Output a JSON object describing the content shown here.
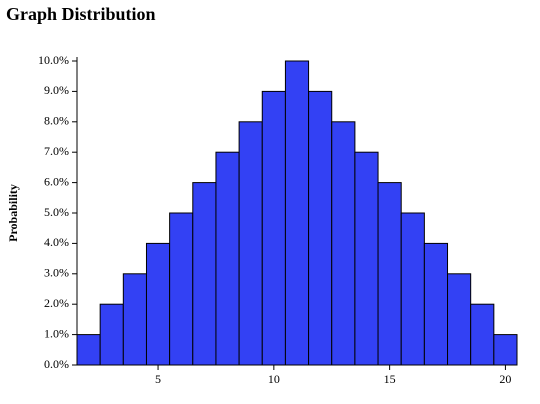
{
  "chart_data": {
    "type": "histogram",
    "title": "Graph Distribution",
    "y_label": "Probability",
    "bins": [
      1.5,
      2.5,
      3.5,
      4.5,
      5.5,
      6.5,
      7.5,
      8.5,
      9.5,
      10.5,
      11.5,
      12.5,
      13.5,
      14.5,
      15.5,
      16.5,
      17.5,
      18.5,
      19.5,
      20.5
    ],
    "counts": [
      1,
      2,
      3,
      4,
      5,
      6,
      7,
      8,
      9,
      10,
      9,
      8,
      7,
      6,
      5,
      4,
      3,
      2,
      1
    ],
    "color": "#3341f4",
    "xlim": [
      1.5,
      20.5
    ],
    "xticks": [
      5,
      10,
      15,
      20
    ],
    "ylim": [
      0,
      10
    ],
    "yticks": [
      {
        "value": 0,
        "label": "0.0%"
      },
      {
        "value": 1,
        "label": "1.0%"
      },
      {
        "value": 2,
        "label": "2.0%"
      },
      {
        "value": 3,
        "label": "3.0%"
      },
      {
        "value": 4,
        "label": "4.0%"
      },
      {
        "value": 5,
        "label": "5.0%"
      },
      {
        "value": 6,
        "label": "6.0%"
      },
      {
        "value": 7,
        "label": "7.0%"
      },
      {
        "value": 8,
        "label": "8.0%"
      },
      {
        "value": 9,
        "label": "9.0%"
      },
      {
        "value": 10,
        "label": "10.0%"
      }
    ]
  }
}
